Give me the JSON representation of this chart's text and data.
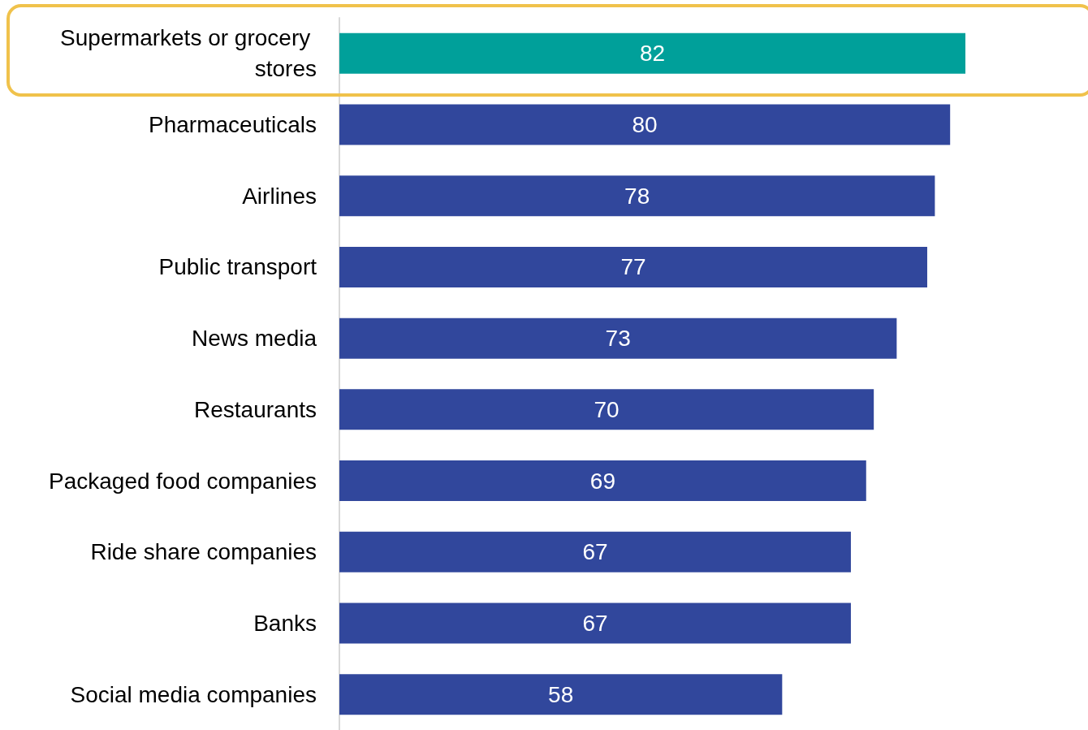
{
  "chart_data": {
    "type": "bar",
    "orientation": "horizontal",
    "categories": [
      "Supermarkets or grocery stores",
      "Pharmaceuticals",
      "Airlines",
      "Public transport",
      "News media",
      "Restaurants",
      "Packaged food companies",
      "Ride share companies",
      "Banks",
      "Social media companies"
    ],
    "values": [
      82,
      80,
      78,
      77,
      73,
      70,
      69,
      67,
      67,
      58
    ],
    "colors": [
      "#00a09a",
      "#31479c",
      "#31479c",
      "#31479c",
      "#31479c",
      "#31479c",
      "#31479c",
      "#31479c",
      "#31479c",
      "#31479c"
    ],
    "data_labels": true
  }
}
